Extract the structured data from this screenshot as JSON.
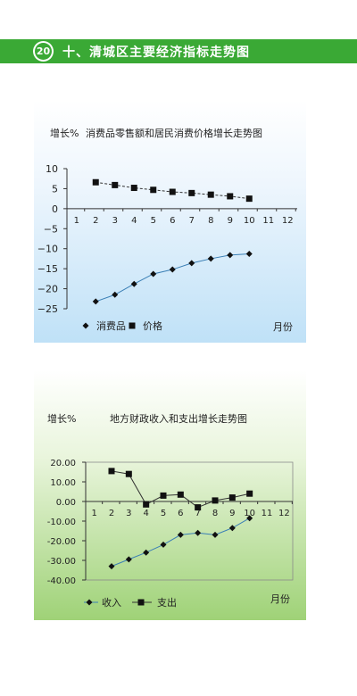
{
  "header": {
    "badge": "20",
    "title": "十、清城区主要经济指标走势图"
  },
  "chart_data": [
    {
      "type": "line",
      "title": "消费品零售额和居民消费价格增长走势图",
      "ylabel": "增长%",
      "xlabel": "月份",
      "ylim": [
        -25,
        10
      ],
      "yticks": [
        10,
        5,
        0,
        -5,
        -10,
        -15,
        -20,
        -25
      ],
      "ytick_labels": [
        "10",
        "5",
        "0",
        "−5",
        "−10",
        "−15",
        "−20",
        "−25"
      ],
      "xticks": [
        1,
        2,
        3,
        4,
        5,
        6,
        7,
        8,
        9,
        10,
        11,
        12
      ],
      "grid": false,
      "legend_position": "bottom-left",
      "series": [
        {
          "name": "消费品",
          "marker": "diamond",
          "line": "solid",
          "x": [
            2,
            3,
            4,
            5,
            6,
            7,
            8,
            9,
            10
          ],
          "values": [
            -23.2,
            -21.5,
            -18.8,
            -16.3,
            -15.2,
            -13.6,
            -12.5,
            -11.6,
            -11.3
          ]
        },
        {
          "name": "价格",
          "marker": "square",
          "line": "dashed",
          "x": [
            2,
            3,
            4,
            5,
            6,
            7,
            8,
            9,
            10
          ],
          "values": [
            6.6,
            5.9,
            5.2,
            4.7,
            4.2,
            3.9,
            3.5,
            3.1,
            2.5
          ]
        }
      ]
    },
    {
      "type": "line",
      "title": "地方财政收入和支出增长走势图",
      "ylabel": "增长%",
      "xlabel": "月份",
      "ylim": [
        -40,
        20
      ],
      "yticks": [
        20,
        10,
        0,
        -10,
        -20,
        -30,
        -40
      ],
      "ytick_labels": [
        "20.00",
        "10.00",
        "0.00",
        "-10.00",
        "-20.00",
        "-30.00",
        "-40.00"
      ],
      "xticks": [
        1,
        2,
        3,
        4,
        5,
        6,
        7,
        8,
        9,
        10,
        11,
        12
      ],
      "grid": false,
      "legend_position": "bottom-left",
      "series": [
        {
          "name": "收入",
          "marker": "diamond",
          "line": "solid",
          "x": [
            2,
            3,
            4,
            5,
            6,
            7,
            8,
            9,
            10
          ],
          "values": [
            -33,
            -29.5,
            -26,
            -22,
            -17,
            -16,
            -17,
            -13.5,
            -8.5
          ]
        },
        {
          "name": "支出",
          "marker": "square",
          "line": "solid",
          "x": [
            2,
            3,
            4,
            5,
            6,
            7,
            8,
            9,
            10
          ],
          "values": [
            15.5,
            14,
            -1.5,
            3,
            3.5,
            -3,
            0.5,
            2,
            4
          ]
        }
      ]
    }
  ]
}
